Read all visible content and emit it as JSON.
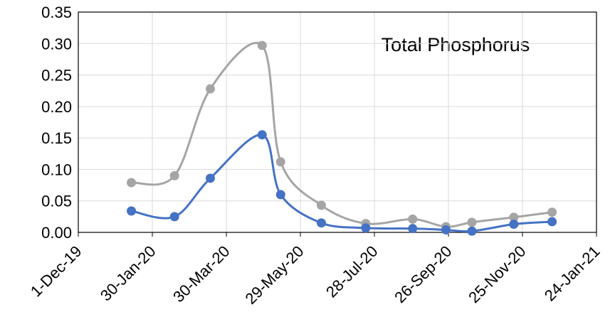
{
  "chart_data": {
    "type": "line",
    "annotation": "Total Phosphorus",
    "series": [
      {
        "color": "#a5a5a5",
        "x": [
          "2020-01-13",
          "2020-02-17",
          "2020-03-17",
          "2020-04-28",
          "2020-05-13",
          "2020-06-15",
          "2020-07-21",
          "2020-08-28",
          "2020-09-24",
          "2020-10-15",
          "2020-11-18",
          "2020-12-19"
        ],
        "values": [
          0.079,
          0.09,
          0.228,
          0.297,
          0.112,
          0.043,
          0.014,
          0.021,
          0.009,
          0.016,
          0.024,
          0.032
        ]
      },
      {
        "color": "#4472c4",
        "x": [
          "2020-01-13",
          "2020-02-17",
          "2020-03-17",
          "2020-04-28",
          "2020-05-13",
          "2020-06-15",
          "2020-07-21",
          "2020-08-28",
          "2020-09-24",
          "2020-10-15",
          "2020-11-18",
          "2020-12-19"
        ],
        "values": [
          0.034,
          0.025,
          0.086,
          0.155,
          0.06,
          0.015,
          0.007,
          0.006,
          0.004,
          0.002,
          0.013,
          0.017
        ]
      }
    ],
    "xlim": [
      "2019-12-01",
      "2021-01-24"
    ],
    "xticks": [
      {
        "value": "2019-12-01",
        "label": "1-Dec-19"
      },
      {
        "value": "2020-01-30",
        "label": "30-Jan-20"
      },
      {
        "value": "2020-03-30",
        "label": "30-Mar-20"
      },
      {
        "value": "2020-05-29",
        "label": "29-May-20"
      },
      {
        "value": "2020-07-28",
        "label": "28-Jul-20"
      },
      {
        "value": "2020-09-26",
        "label": "26-Sep-20"
      },
      {
        "value": "2020-11-25",
        "label": "25-Nov-20"
      },
      {
        "value": "2021-01-24",
        "label": "24-Jan-21"
      }
    ],
    "ylim": [
      0,
      0.35
    ],
    "yticks": [
      {
        "value": 0,
        "label": "0.00"
      },
      {
        "value": 0.05,
        "label": "0.05"
      },
      {
        "value": 0.1,
        "label": "0.10"
      },
      {
        "value": 0.15,
        "label": "0.15"
      },
      {
        "value": 0.2,
        "label": "0.20"
      },
      {
        "value": 0.25,
        "label": "0.25"
      },
      {
        "value": 0.3,
        "label": "0.30"
      },
      {
        "value": 0.35,
        "label": "0.35"
      }
    ],
    "grid": true
  }
}
